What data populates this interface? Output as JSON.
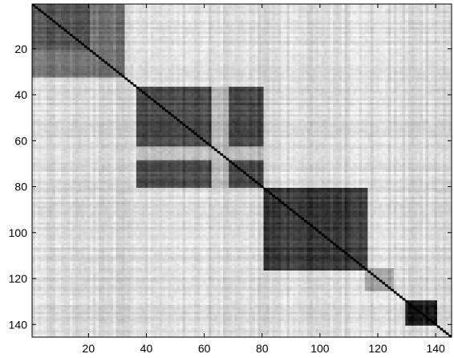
{
  "chart_data": {
    "type": "heatmap",
    "title": "",
    "xlabel": "",
    "ylabel": "",
    "xlim": [
      0.5,
      145.5
    ],
    "ylim": [
      145.5,
      0.5
    ],
    "x_ticks": [
      20,
      40,
      60,
      80,
      100,
      120,
      140
    ],
    "y_ticks": [
      20,
      40,
      60,
      80,
      100,
      120,
      140
    ],
    "x_tick_labels": [
      "20",
      "40",
      "60",
      "80",
      "100",
      "120",
      "140"
    ],
    "y_tick_labels": [
      "20",
      "40",
      "60",
      "80",
      "100",
      "120",
      "140"
    ],
    "colormap": "gray",
    "grid": false,
    "matrix_size": 145,
    "background_level": 0.85,
    "diagonal_level": 0.0,
    "blocks": [
      {
        "rows": [
          1,
          32
        ],
        "cols": [
          1,
          32
        ],
        "level": 0.45
      },
      {
        "rows": [
          1,
          20
        ],
        "cols": [
          1,
          20
        ],
        "level": 0.32
      },
      {
        "rows": [
          20,
          32
        ],
        "cols": [
          20,
          32
        ],
        "level": 0.45
      },
      {
        "rows": [
          37,
          80
        ],
        "cols": [
          37,
          80
        ],
        "level": 0.28
      },
      {
        "rows": [
          63,
          68
        ],
        "cols": [
          37,
          80
        ],
        "level": 0.72
      },
      {
        "rows": [
          37,
          80
        ],
        "cols": [
          63,
          68
        ],
        "level": 0.72
      },
      {
        "rows": [
          81,
          116
        ],
        "cols": [
          81,
          116
        ],
        "level": 0.22
      },
      {
        "rows": [
          116,
          125
        ],
        "cols": [
          116,
          125
        ],
        "level": 0.62
      },
      {
        "rows": [
          130,
          140
        ],
        "cols": [
          130,
          140
        ],
        "level": 0.12
      }
    ]
  }
}
